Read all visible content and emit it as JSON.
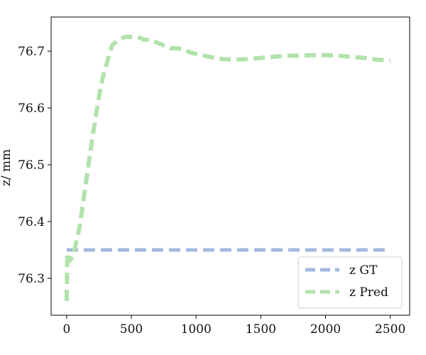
{
  "chart_data": {
    "type": "line",
    "title": "",
    "xlabel": "",
    "ylabel": "z/ mm",
    "xlim": [
      -120,
      2650
    ],
    "ylim": [
      76.235,
      76.76
    ],
    "xticks": [
      0,
      500,
      1000,
      1500,
      2000,
      2500
    ],
    "yticks": [
      76.3,
      76.4,
      76.5,
      76.6,
      76.7
    ],
    "grid": false,
    "legend_position": "lower-right",
    "series": [
      {
        "name": "z GT",
        "color": "#a4b9e0",
        "style": "dashed",
        "x": [
          0,
          2500
        ],
        "y": [
          76.35,
          76.35
        ]
      },
      {
        "name": "z Pred",
        "color": "#b2e2ac",
        "style": "dashed",
        "x": [
          0,
          5,
          20,
          50,
          100,
          150,
          200,
          250,
          280,
          300,
          350,
          400,
          450,
          500,
          550,
          600,
          650,
          700,
          750,
          800,
          850,
          900,
          950,
          1000,
          1100,
          1200,
          1300,
          1400,
          1500,
          1600,
          1700,
          1800,
          1900,
          2000,
          2100,
          2200,
          2300,
          2400,
          2500
        ],
        "y": [
          76.26,
          76.345,
          76.33,
          76.34,
          76.39,
          76.47,
          76.55,
          76.62,
          76.655,
          76.67,
          76.71,
          76.72,
          76.725,
          76.725,
          76.725,
          76.72,
          76.72,
          76.715,
          76.71,
          76.705,
          76.705,
          76.703,
          76.698,
          76.695,
          76.69,
          76.686,
          76.685,
          76.686,
          76.688,
          76.69,
          76.692,
          76.692,
          76.693,
          76.693,
          76.692,
          76.69,
          76.688,
          76.685,
          76.683
        ]
      }
    ]
  }
}
